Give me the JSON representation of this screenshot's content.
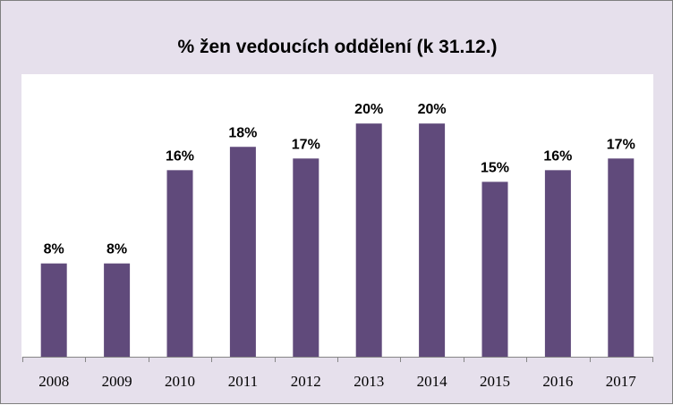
{
  "chart_data": {
    "type": "bar",
    "title": "% žen vedoucích oddělení (k 31.12.)",
    "categories": [
      "2008",
      "2009",
      "2010",
      "2011",
      "2012",
      "2013",
      "2014",
      "2015",
      "2016",
      "2017"
    ],
    "values": [
      8,
      8,
      16,
      18,
      17,
      20,
      20,
      15,
      16,
      17
    ],
    "value_labels": [
      "8%",
      "8%",
      "16%",
      "18%",
      "17%",
      "20%",
      "20%",
      "15%",
      "16%",
      "17%"
    ],
    "unit": "%",
    "xlabel": "",
    "ylabel": "",
    "ylim": [
      0,
      24
    ],
    "grid": false,
    "legend": "none",
    "bar_color": "#604a7b",
    "plot_background": "#ffffff",
    "chart_background": "#e6e0ec"
  }
}
